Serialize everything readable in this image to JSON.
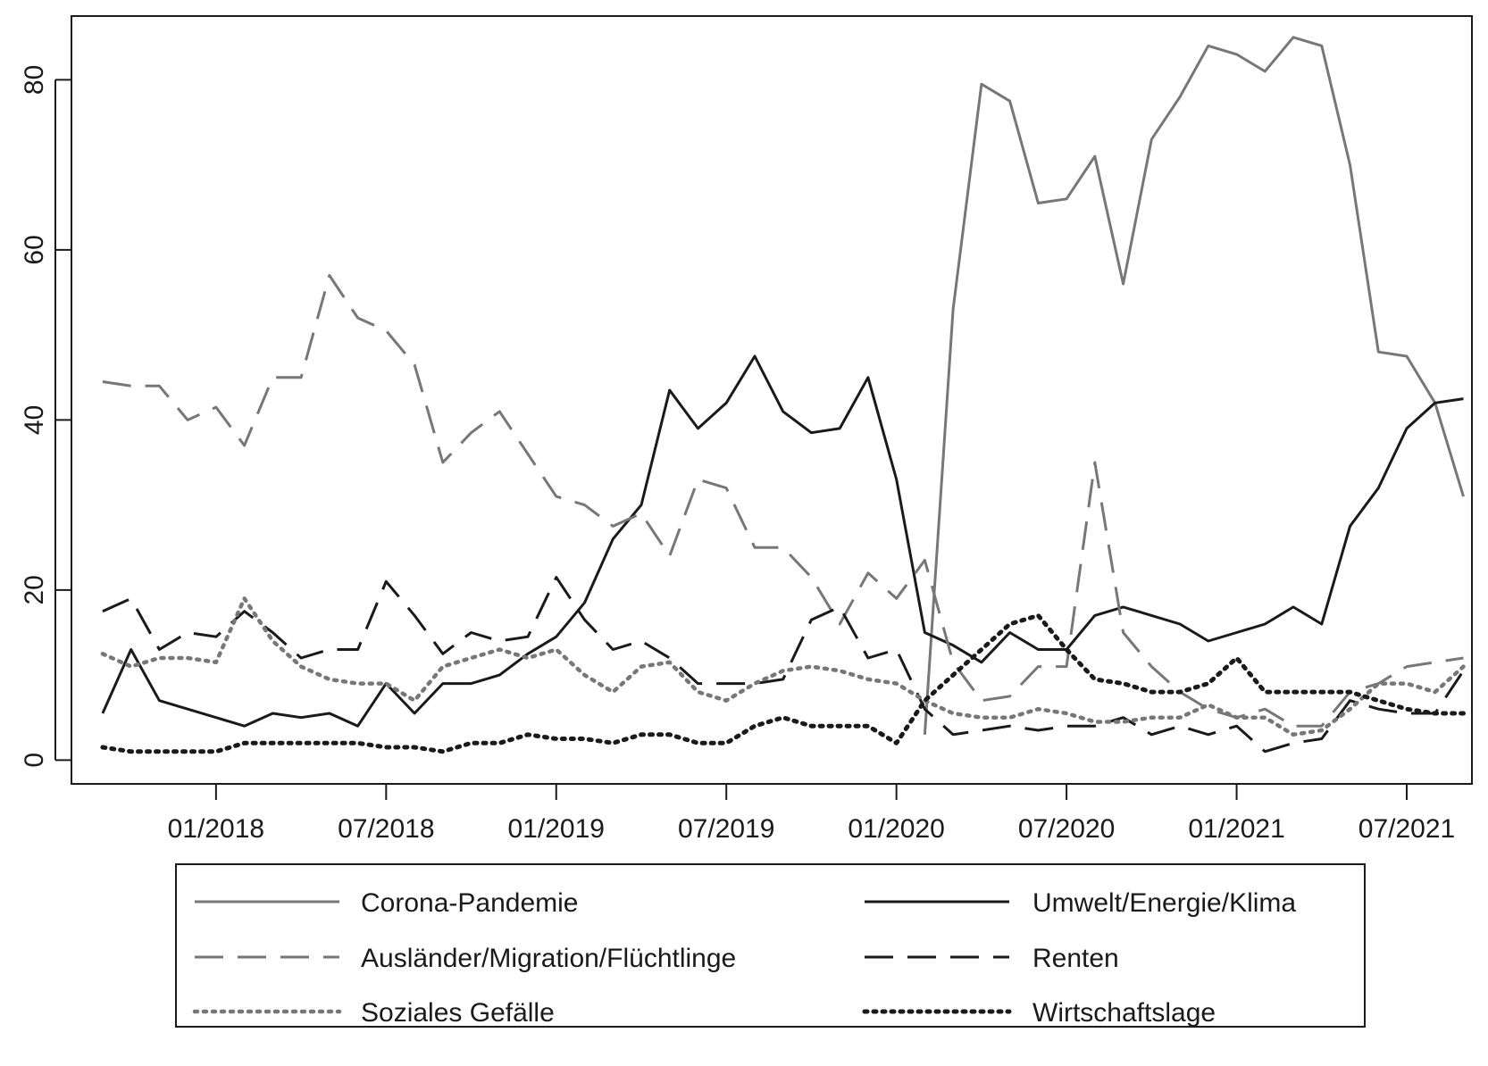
{
  "chart_data": {
    "type": "line",
    "title": "",
    "xlabel": "",
    "ylabel": "",
    "ylim": [
      -2.8,
      87.5
    ],
    "xlim": [
      "2017-08",
      "2021-09"
    ],
    "grid": false,
    "legend_position": "bottom",
    "x_tick_labels": [
      "01/2018",
      "07/2018",
      "01/2019",
      "07/2019",
      "01/2020",
      "07/2020",
      "01/2021",
      "07/2021"
    ],
    "y_tick_labels": [
      "0",
      "20",
      "40",
      "60",
      "80"
    ],
    "x": [
      "2017-09",
      "2017-10",
      "2017-11",
      "2017-12",
      "2018-01",
      "2018-02",
      "2018-03",
      "2018-04",
      "2018-05",
      "2018-06",
      "2018-07",
      "2018-08",
      "2018-09",
      "2018-10",
      "2018-11",
      "2018-12",
      "2019-01",
      "2019-02",
      "2019-03",
      "2019-04",
      "2019-05",
      "2019-06",
      "2019-07",
      "2019-08",
      "2019-09",
      "2019-10",
      "2019-11",
      "2019-12",
      "2020-01",
      "2020-02",
      "2020-03",
      "2020-04",
      "2020-05",
      "2020-06",
      "2020-07",
      "2020-08",
      "2020-09",
      "2020-10",
      "2020-11",
      "2020-12",
      "2021-01",
      "2021-02",
      "2021-03",
      "2021-04",
      "2021-05",
      "2021-06",
      "2021-07",
      "2021-08",
      "2021-09"
    ],
    "series": [
      {
        "name": "Corona-Pandemie",
        "style": "solid",
        "color": "#777777",
        "values": [
          null,
          null,
          null,
          null,
          null,
          null,
          null,
          null,
          null,
          null,
          null,
          null,
          null,
          null,
          null,
          null,
          null,
          null,
          null,
          null,
          null,
          null,
          null,
          null,
          null,
          null,
          null,
          null,
          null,
          3,
          53,
          79.5,
          77.5,
          65.5,
          66,
          71,
          56,
          73,
          78,
          84,
          83,
          81,
          85,
          84,
          70,
          48,
          47.5,
          42,
          31
        ]
      },
      {
        "name": "Umwelt/Energie/Klima",
        "style": "solid",
        "color": "#1a1a1a",
        "values": [
          5.5,
          13,
          7,
          6,
          5,
          4,
          5.5,
          5,
          5.5,
          4,
          9,
          5.5,
          9,
          9,
          10,
          12.5,
          14.5,
          18.5,
          26,
          30,
          43.5,
          39,
          42,
          47.5,
          41,
          38.5,
          39,
          45,
          33,
          15,
          13.5,
          11.5,
          15,
          13,
          13,
          17,
          18,
          17,
          16,
          14,
          15,
          16,
          18,
          16,
          27.5,
          32,
          39,
          42,
          42.5
        ]
      },
      {
        "name": "Ausländer/Migration/Flüchtlinge",
        "style": "dashed",
        "color": "#777777",
        "values": [
          44.5,
          44,
          44,
          40,
          41.5,
          37,
          45,
          45,
          57,
          52,
          50.5,
          46.5,
          35,
          38.5,
          41,
          36,
          31,
          30,
          27.5,
          29,
          24,
          33,
          32,
          25,
          25,
          21.5,
          16,
          22,
          19,
          23.5,
          11.5,
          7,
          7.5,
          11,
          11,
          35,
          15,
          11,
          8,
          6,
          5,
          6,
          4,
          4,
          8,
          9,
          11,
          11.5,
          12
        ]
      },
      {
        "name": "Renten",
        "style": "dashed",
        "color": "#1a1a1a",
        "values": [
          17.5,
          19,
          13,
          15,
          14.5,
          17.5,
          15,
          12,
          13,
          13,
          21,
          17,
          12.5,
          15,
          14,
          14.5,
          21.5,
          16.5,
          13,
          14,
          12,
          9,
          9,
          9,
          9.5,
          16.5,
          18,
          12,
          13,
          6,
          3,
          3.5,
          4,
          3.5,
          4,
          4,
          5,
          3,
          4,
          3,
          4,
          1,
          2,
          2.5,
          7,
          6,
          5.5,
          5.5,
          10.5
        ]
      },
      {
        "name": "Soziales Gefälle",
        "style": "dotted",
        "color": "#777777",
        "values": [
          12.5,
          11,
          12,
          12,
          11.5,
          19,
          14,
          11,
          9.5,
          9,
          9,
          7,
          11,
          12,
          13,
          12,
          13,
          10,
          8,
          11,
          11.5,
          8,
          7,
          9,
          10.5,
          11,
          10.5,
          9.5,
          9,
          7,
          5.5,
          5,
          5,
          6,
          5.5,
          4.5,
          4.5,
          5,
          5,
          6.5,
          5,
          5,
          3,
          3.5,
          6,
          9,
          9,
          8,
          11
        ]
      },
      {
        "name": "Wirtschaftslage",
        "style": "dotted",
        "color": "#1a1a1a",
        "values": [
          1.5,
          1,
          1,
          1,
          1,
          2,
          2,
          2,
          2,
          2,
          1.5,
          1.5,
          1,
          2,
          2,
          3,
          2.5,
          2.5,
          2,
          3,
          3,
          2,
          2,
          4,
          5,
          4,
          4,
          4,
          2,
          7,
          10,
          13,
          16,
          17,
          13,
          9.5,
          9,
          8,
          8,
          9,
          12,
          8,
          8,
          8,
          8,
          7,
          6,
          5.5,
          5.5
        ]
      }
    ]
  }
}
